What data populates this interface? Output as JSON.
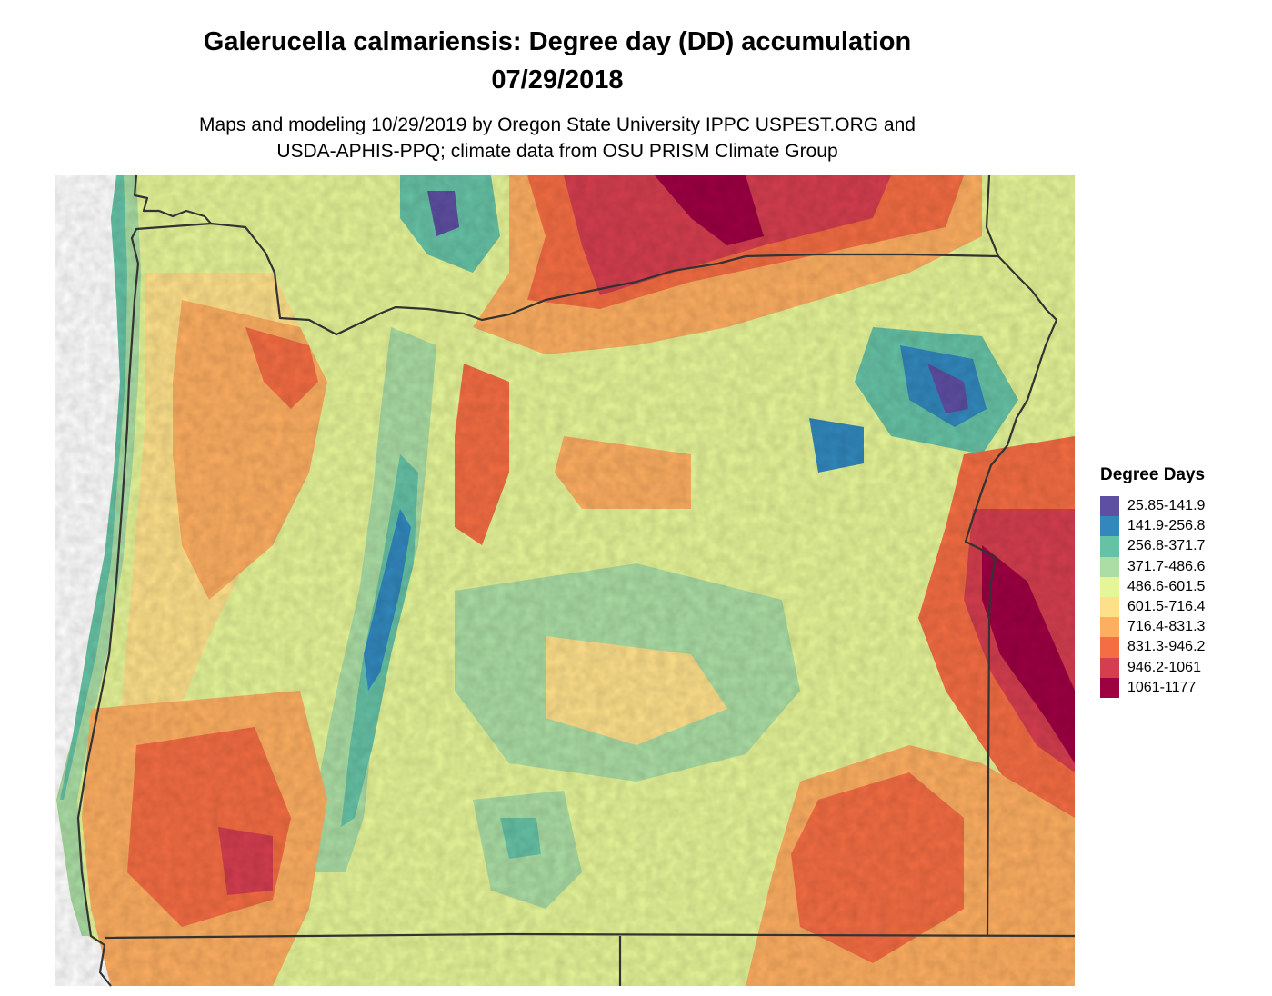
{
  "title_line1": "Galerucella calmariensis: Degree day (DD) accumulation",
  "title_line2": "07/29/2018",
  "subtitle_line1": "Maps and modeling 10/29/2019 by Oregon State University IPPC USPEST.ORG and",
  "subtitle_line2": "USDA-APHIS-PPQ; climate data from OSU PRISM Climate Group",
  "legend": {
    "title": "Degree Days",
    "items": [
      {
        "label": "25.85-141.9",
        "color": "#5e4fa2"
      },
      {
        "label": "141.9-256.8",
        "color": "#3288bd"
      },
      {
        "label": "256.8-371.7",
        "color": "#66c2a5"
      },
      {
        "label": "371.7-486.6",
        "color": "#abdda4"
      },
      {
        "label": "486.6-601.5",
        "color": "#e6f598"
      },
      {
        "label": "601.5-716.4",
        "color": "#fee08b"
      },
      {
        "label": "716.4-831.3",
        "color": "#fdae61"
      },
      {
        "label": "831.3-946.2",
        "color": "#f46d43"
      },
      {
        "label": "946.2-1061",
        "color": "#d53e4f"
      },
      {
        "label": "1061-1177",
        "color": "#9e0142"
      }
    ]
  },
  "boundary_color": "#333333"
}
